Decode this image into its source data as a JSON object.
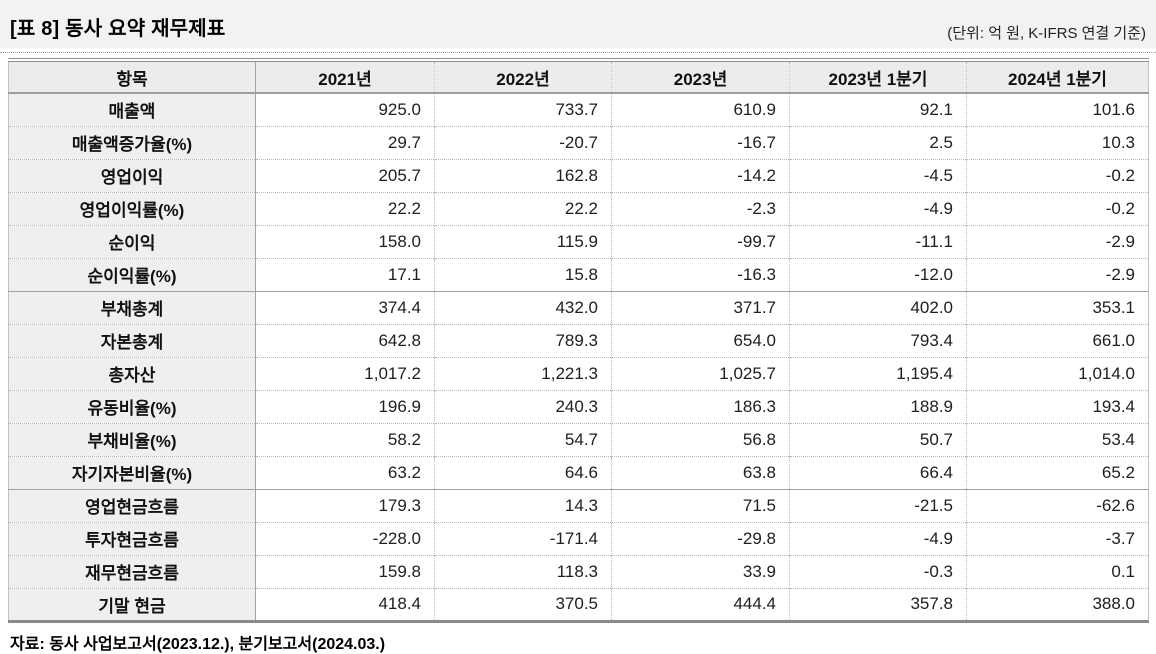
{
  "title": "[표 8] 동사 요약 재무제표",
  "unit_note": "(단위: 억 원, K-IFRS 연결 기준)",
  "source_note": "자료: 동사 사업보고서(2023.12.), 분기보고서(2024.03.)",
  "table": {
    "columns": [
      "항목",
      "2021년",
      "2022년",
      "2023년",
      "2023년 1분기",
      "2024년 1분기"
    ],
    "sections": [
      {
        "name": "income-statement",
        "rows": [
          {
            "label": "매출액",
            "values": [
              "925.0",
              "733.7",
              "610.9",
              "92.1",
              "101.6"
            ]
          },
          {
            "label": "매출액증가율(%)",
            "values": [
              "29.7",
              "-20.7",
              "-16.7",
              "2.5",
              "10.3"
            ]
          },
          {
            "label": "영업이익",
            "values": [
              "205.7",
              "162.8",
              "-14.2",
              "-4.5",
              "-0.2"
            ]
          },
          {
            "label": "영업이익률(%)",
            "values": [
              "22.2",
              "22.2",
              "-2.3",
              "-4.9",
              "-0.2"
            ]
          },
          {
            "label": "순이익",
            "values": [
              "158.0",
              "115.9",
              "-99.7",
              "-11.1",
              "-2.9"
            ]
          },
          {
            "label": "순이익률(%)",
            "values": [
              "17.1",
              "15.8",
              "-16.3",
              "-12.0",
              "-2.9"
            ]
          }
        ]
      },
      {
        "name": "balance-sheet",
        "rows": [
          {
            "label": "부채총계",
            "values": [
              "374.4",
              "432.0",
              "371.7",
              "402.0",
              "353.1"
            ]
          },
          {
            "label": "자본총계",
            "values": [
              "642.8",
              "789.3",
              "654.0",
              "793.4",
              "661.0"
            ]
          },
          {
            "label": "총자산",
            "values": [
              "1,017.2",
              "1,221.3",
              "1,025.7",
              "1,195.4",
              "1,014.0"
            ]
          },
          {
            "label": "유동비율(%)",
            "values": [
              "196.9",
              "240.3",
              "186.3",
              "188.9",
              "193.4"
            ]
          },
          {
            "label": "부채비율(%)",
            "values": [
              "58.2",
              "54.7",
              "56.8",
              "50.7",
              "53.4"
            ]
          },
          {
            "label": "자기자본비율(%)",
            "values": [
              "63.2",
              "64.6",
              "63.8",
              "66.4",
              "65.2"
            ]
          }
        ]
      },
      {
        "name": "cash-flow",
        "rows": [
          {
            "label": "영업현금흐름",
            "values": [
              "179.3",
              "14.3",
              "71.5",
              "-21.5",
              "-62.6"
            ]
          },
          {
            "label": "투자현금흐름",
            "values": [
              "-228.0",
              "-171.4",
              "-29.8",
              "-4.9",
              "-3.7"
            ]
          },
          {
            "label": "재무현금흐름",
            "values": [
              "159.8",
              "118.3",
              "33.9",
              "-0.3",
              "0.1"
            ]
          },
          {
            "label": "기말 현금",
            "values": [
              "418.4",
              "370.5",
              "444.4",
              "357.8",
              "388.0"
            ]
          }
        ]
      }
    ]
  }
}
